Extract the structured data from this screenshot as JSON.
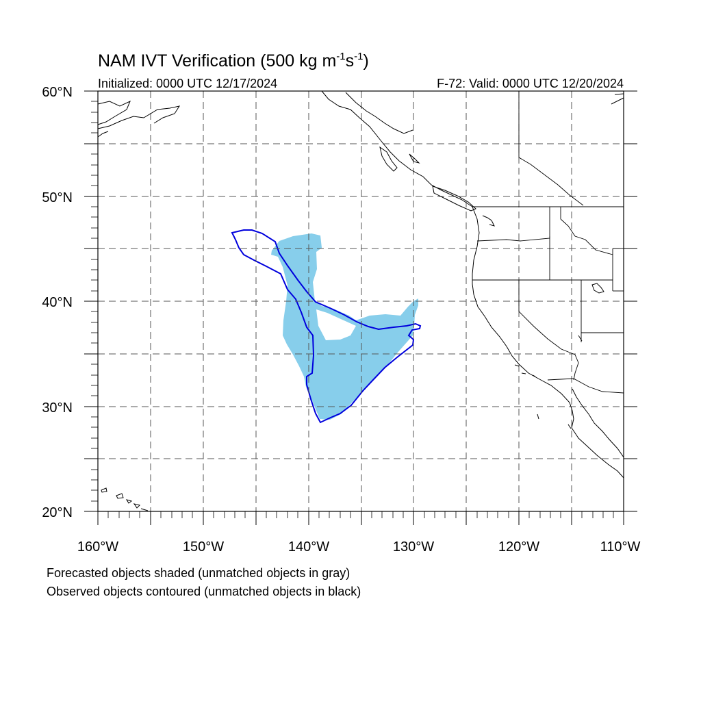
{
  "title": {
    "main": "NAM IVT Verification (500 kg m",
    "sup1": "-1",
    "mid": "s",
    "sup2": "-1",
    "close": ")"
  },
  "subtitle_left": "Initialized: 0000 UTC 12/17/2024",
  "subtitle_right": "F-72: Valid: 0000 UTC 12/20/2024",
  "latitude_labels": [
    "60°N",
    "50°N",
    "40°N",
    "30°N",
    "20°N"
  ],
  "longitude_labels": [
    "160°W",
    "150°W",
    "140°W",
    "130°W",
    "120°W",
    "110°W"
  ],
  "captions": [
    "Forecasted objects shaded (unmatched objects in gray)",
    "Observed objects contoured (unmatched objects in black)"
  ],
  "colors": {
    "forecast_fill": "#87ceeb",
    "observed_contour": "#0000dd",
    "coastline": "#000000",
    "grid": "#555555"
  },
  "map": {
    "lon_range": [
      -160,
      -110
    ],
    "lat_range": [
      20,
      60
    ],
    "grid_interval_deg": 5,
    "grid_style": "dashed"
  }
}
